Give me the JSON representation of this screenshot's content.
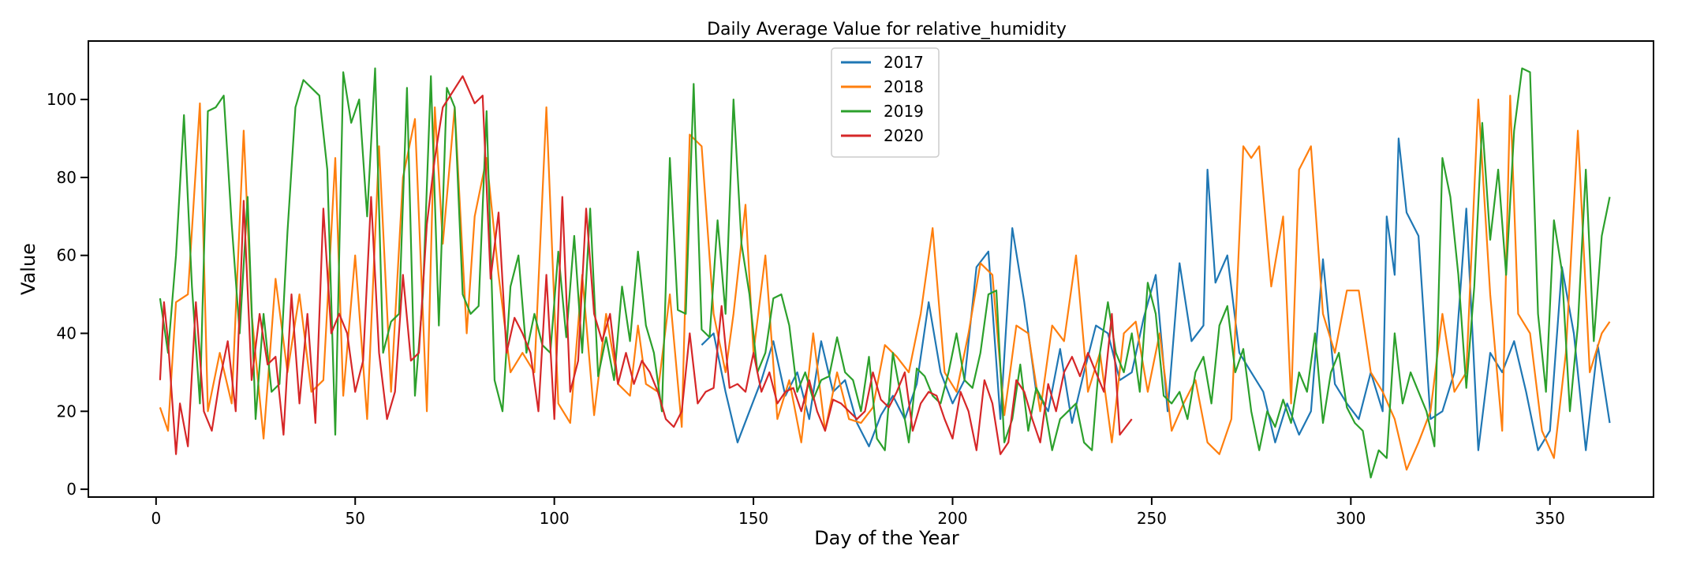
{
  "chart_data": {
    "type": "line",
    "title": "Daily Average Value for relative_humidity",
    "xlabel": "Day of the Year",
    "ylabel": "Value",
    "xlim": [
      -17,
      376
    ],
    "ylim": [
      -2,
      115
    ],
    "xticks": [
      0,
      50,
      100,
      150,
      200,
      250,
      300,
      350
    ],
    "yticks": [
      0,
      20,
      40,
      60,
      80,
      100
    ],
    "grid": false,
    "legend_position": "top-center",
    "series": [
      {
        "name": "2017",
        "color": "#1f77b4",
        "x": [
          137,
          140,
          143,
          146,
          149,
          152,
          155,
          158,
          161,
          164,
          167,
          170,
          173,
          176,
          179,
          182,
          185,
          188,
          191,
          194,
          197,
          200,
          203,
          206,
          209,
          212,
          215,
          218,
          221,
          224,
          227,
          230,
          233,
          236,
          239,
          242,
          245,
          248,
          251,
          254,
          257,
          260,
          263,
          264,
          266,
          269,
          272,
          275,
          278,
          281,
          284,
          287,
          290,
          293,
          296,
          299,
          302,
          305,
          308,
          309,
          311,
          312,
          314,
          317,
          320,
          323,
          326,
          329,
          332,
          335,
          338,
          341,
          344,
          347,
          350,
          353,
          356,
          359,
          362,
          365
        ],
        "y": [
          37,
          40,
          25,
          12,
          20,
          28,
          38,
          24,
          30,
          18,
          38,
          25,
          28,
          17,
          11,
          19,
          24,
          18,
          27,
          48,
          30,
          22,
          28,
          57,
          61,
          18,
          67,
          48,
          25,
          20,
          36,
          17,
          30,
          42,
          40,
          28,
          30,
          44,
          55,
          20,
          58,
          38,
          42,
          82,
          53,
          60,
          35,
          30,
          25,
          12,
          22,
          14,
          20,
          59,
          27,
          22,
          18,
          30,
          20,
          70,
          55,
          90,
          71,
          65,
          18,
          20,
          30,
          72,
          10,
          35,
          30,
          38,
          25,
          10,
          15,
          57,
          40,
          10,
          37,
          17
        ]
      },
      {
        "name": "2018",
        "color": "#ff7f0e",
        "x": [
          1,
          3,
          5,
          8,
          11,
          13,
          16,
          19,
          22,
          24,
          27,
          30,
          33,
          36,
          39,
          42,
          45,
          47,
          50,
          53,
          56,
          59,
          62,
          65,
          68,
          70,
          72,
          75,
          78,
          80,
          83,
          86,
          89,
          92,
          95,
          98,
          101,
          104,
          107,
          110,
          113,
          116,
          119,
          121,
          123,
          126,
          129,
          132,
          134,
          137,
          140,
          143,
          145,
          148,
          150,
          153,
          156,
          159,
          162,
          165,
          168,
          171,
          174,
          177,
          180,
          183,
          186,
          189,
          192,
          195,
          198,
          201,
          204,
          207,
          210,
          213,
          216,
          219,
          222,
          225,
          228,
          231,
          234,
          237,
          240,
          243,
          246,
          249,
          252,
          255,
          258,
          261,
          264,
          267,
          270,
          273,
          275,
          277,
          280,
          283,
          285,
          287,
          290,
          293,
          296,
          299,
          302,
          305,
          308,
          311,
          314,
          317,
          320,
          323,
          326,
          329,
          332,
          335,
          338,
          340,
          342,
          345,
          348,
          351,
          354,
          357,
          360,
          363,
          365
        ],
        "y": [
          21,
          15,
          48,
          50,
          99,
          20,
          35,
          22,
          92,
          45,
          13,
          54,
          30,
          50,
          25,
          28,
          85,
          24,
          60,
          18,
          88,
          25,
          80,
          95,
          20,
          98,
          63,
          98,
          40,
          70,
          85,
          55,
          30,
          35,
          30,
          98,
          22,
          17,
          55,
          19,
          45,
          27,
          24,
          42,
          27,
          25,
          50,
          16,
          91,
          88,
          45,
          30,
          45,
          73,
          35,
          60,
          18,
          28,
          12,
          40,
          15,
          30,
          18,
          17,
          21,
          37,
          34,
          30,
          45,
          67,
          30,
          25,
          40,
          58,
          55,
          19,
          42,
          40,
          20,
          42,
          38,
          60,
          25,
          35,
          12,
          40,
          43,
          25,
          40,
          15,
          22,
          28,
          12,
          9,
          18,
          88,
          85,
          88,
          52,
          70,
          22,
          82,
          88,
          45,
          35,
          51,
          51,
          30,
          25,
          18,
          5,
          12,
          20,
          45,
          25,
          30,
          100,
          50,
          15,
          101,
          45,
          40,
          15,
          8,
          35,
          92,
          30,
          40,
          43
        ]
      },
      {
        "name": "2019",
        "color": "#2ca02c",
        "x": [
          1,
          3,
          5,
          7,
          9,
          11,
          13,
          15,
          17,
          19,
          21,
          23,
          25,
          27,
          29,
          31,
          33,
          35,
          37,
          39,
          41,
          43,
          45,
          47,
          49,
          51,
          53,
          55,
          57,
          59,
          61,
          63,
          65,
          67,
          69,
          71,
          73,
          75,
          77,
          79,
          81,
          83,
          85,
          87,
          89,
          91,
          93,
          95,
          97,
          99,
          101,
          103,
          105,
          107,
          109,
          111,
          113,
          115,
          117,
          119,
          121,
          123,
          125,
          127,
          129,
          131,
          133,
          135,
          137,
          139,
          141,
          143,
          145,
          147,
          149,
          151,
          153,
          155,
          157,
          159,
          161,
          163,
          165,
          167,
          169,
          171,
          173,
          175,
          177,
          179,
          181,
          183,
          185,
          187,
          189,
          191,
          193,
          195,
          197,
          199,
          201,
          203,
          205,
          207,
          209,
          211,
          213,
          215,
          217,
          219,
          221,
          223,
          225,
          227,
          229,
          231,
          233,
          235,
          237,
          239,
          241,
          243,
          245,
          247,
          249,
          251,
          253,
          255,
          257,
          259,
          261,
          263,
          265,
          267,
          269,
          271,
          273,
          275,
          277,
          279,
          281,
          283,
          285,
          287,
          289,
          291,
          293,
          295,
          297,
          299,
          301,
          303,
          305,
          307,
          309,
          311,
          313,
          315,
          317,
          319,
          321,
          323,
          325,
          327,
          329,
          331,
          333,
          335,
          337,
          339,
          341,
          343,
          345,
          347,
          349,
          351,
          353,
          355,
          357,
          359,
          361,
          363,
          365
        ],
        "y": [
          49,
          35,
          60,
          96,
          52,
          22,
          97,
          98,
          101,
          68,
          40,
          75,
          18,
          45,
          25,
          27,
          66,
          98,
          105,
          103,
          101,
          82,
          14,
          107,
          94,
          100,
          70,
          108,
          35,
          43,
          45,
          103,
          24,
          50,
          106,
          42,
          103,
          98,
          50,
          45,
          47,
          97,
          28,
          20,
          52,
          60,
          35,
          45,
          37,
          35,
          61,
          39,
          65,
          35,
          72,
          29,
          39,
          28,
          52,
          38,
          61,
          42,
          35,
          20,
          85,
          46,
          45,
          104,
          41,
          39,
          69,
          45,
          100,
          63,
          50,
          30,
          35,
          49,
          50,
          42,
          25,
          30,
          23,
          28,
          29,
          39,
          30,
          28,
          20,
          34,
          13,
          10,
          35,
          24,
          12,
          31,
          29,
          24,
          22,
          30,
          40,
          28,
          26,
          35,
          50,
          51,
          12,
          18,
          32,
          15,
          26,
          22,
          10,
          18,
          20,
          22,
          12,
          10,
          35,
          48,
          35,
          30,
          40,
          25,
          53,
          45,
          24,
          22,
          25,
          18,
          30,
          34,
          22,
          42,
          47,
          30,
          36,
          20,
          10,
          20,
          16,
          23,
          17,
          30,
          25,
          40,
          17,
          30,
          35,
          21,
          17,
          15,
          3,
          10,
          8,
          40,
          22,
          30,
          25,
          20,
          11,
          85,
          75,
          55,
          26,
          52,
          94,
          64,
          82,
          55,
          92,
          108,
          107,
          45,
          25,
          69,
          56,
          20,
          42,
          82,
          38,
          65,
          75
        ]
      },
      {
        "name": "2020",
        "color": "#d62728",
        "x": [
          1,
          2,
          3,
          5,
          6,
          8,
          10,
          12,
          14,
          16,
          18,
          20,
          22,
          24,
          26,
          28,
          30,
          32,
          34,
          36,
          38,
          40,
          42,
          44,
          46,
          48,
          50,
          52,
          54,
          56,
          58,
          60,
          62,
          64,
          66,
          68,
          70,
          72,
          77,
          80,
          82,
          84,
          86,
          88,
          90,
          92,
          94,
          96,
          98,
          100,
          102,
          104,
          106,
          108,
          110,
          112,
          114,
          116,
          118,
          120,
          122,
          124,
          126,
          128,
          130,
          132,
          134,
          136,
          138,
          140,
          142,
          144,
          146,
          148,
          150,
          152,
          154,
          156,
          158,
          160,
          162,
          164,
          166,
          168,
          170,
          172,
          174,
          176,
          178,
          180,
          182,
          184,
          186,
          188,
          190,
          192,
          194,
          196,
          198,
          200,
          202,
          204,
          206,
          208,
          210,
          212,
          214,
          216,
          218,
          220,
          222,
          224,
          226,
          228,
          230,
          232,
          234,
          236,
          238,
          240,
          242,
          245
        ],
        "y": [
          28,
          48,
          38,
          9,
          22,
          11,
          48,
          20,
          15,
          28,
          38,
          20,
          74,
          28,
          45,
          32,
          34,
          14,
          50,
          22,
          45,
          17,
          72,
          40,
          45,
          40,
          25,
          33,
          75,
          35,
          18,
          25,
          55,
          33,
          35,
          68,
          85,
          98,
          106,
          99,
          101,
          54,
          71,
          35,
          44,
          40,
          35,
          20,
          55,
          18,
          75,
          25,
          33,
          72,
          45,
          38,
          45,
          27,
          35,
          27,
          33,
          30,
          25,
          18,
          16,
          20,
          40,
          22,
          25,
          26,
          47,
          26,
          27,
          25,
          35,
          25,
          30,
          22,
          25,
          26,
          20,
          28,
          20,
          15,
          23,
          22,
          20,
          18,
          20,
          30,
          23,
          21,
          25,
          30,
          15,
          22,
          25,
          24,
          18,
          13,
          25,
          20,
          10,
          28,
          22,
          9,
          12,
          28,
          25,
          18,
          12,
          27,
          20,
          30,
          34,
          29,
          35,
          30,
          25,
          45,
          14,
          18
        ]
      }
    ]
  }
}
